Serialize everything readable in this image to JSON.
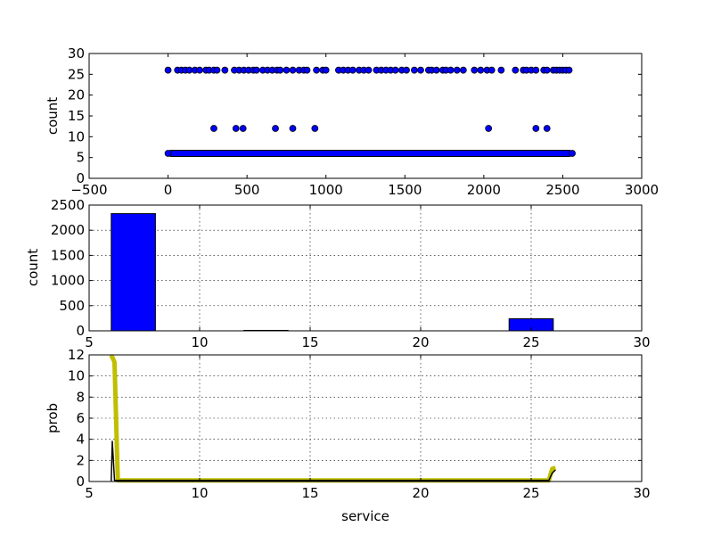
{
  "chart_data": [
    {
      "type": "scatter",
      "title": "",
      "xlabel": "",
      "ylabel": "count",
      "xlim": [
        -500,
        3000
      ],
      "ylim": [
        0,
        30
      ],
      "xticks": [
        -500,
        0,
        500,
        1000,
        1500,
        2000,
        2500,
        3000
      ],
      "yticks": [
        0,
        5,
        10,
        15,
        20,
        25,
        30
      ],
      "grid": false,
      "marker_color": "#0000ff",
      "series": [
        {
          "name": "",
          "points": [
            [
              0,
              6
            ],
            [
              2560,
              6
            ],
            [
              290,
              12
            ],
            [
              430,
              12
            ],
            [
              475,
              12
            ],
            [
              680,
              12
            ],
            [
              790,
              12
            ],
            [
              930,
              12
            ],
            [
              2030,
              12
            ],
            [
              2330,
              12
            ],
            [
              2400,
              12
            ],
            [
              0,
              26
            ],
            [
              60,
              26
            ],
            [
              85,
              26
            ],
            [
              110,
              26
            ],
            [
              135,
              26
            ],
            [
              170,
              26
            ],
            [
              200,
              26
            ],
            [
              240,
              26
            ],
            [
              260,
              26
            ],
            [
              290,
              26
            ],
            [
              310,
              26
            ],
            [
              360,
              26
            ],
            [
              420,
              26
            ],
            [
              450,
              26
            ],
            [
              480,
              26
            ],
            [
              510,
              26
            ],
            [
              540,
              26
            ],
            [
              560,
              26
            ],
            [
              600,
              26
            ],
            [
              630,
              26
            ],
            [
              660,
              26
            ],
            [
              690,
              26
            ],
            [
              710,
              26
            ],
            [
              750,
              26
            ],
            [
              790,
              26
            ],
            [
              830,
              26
            ],
            [
              860,
              26
            ],
            [
              880,
              26
            ],
            [
              940,
              26
            ],
            [
              980,
              26
            ],
            [
              1000,
              26
            ],
            [
              1080,
              26
            ],
            [
              1110,
              26
            ],
            [
              1140,
              26
            ],
            [
              1170,
              26
            ],
            [
              1210,
              26
            ],
            [
              1240,
              26
            ],
            [
              1270,
              26
            ],
            [
              1320,
              26
            ],
            [
              1350,
              26
            ],
            [
              1380,
              26
            ],
            [
              1410,
              26
            ],
            [
              1440,
              26
            ],
            [
              1480,
              26
            ],
            [
              1510,
              26
            ],
            [
              1560,
              26
            ],
            [
              1600,
              26
            ],
            [
              1650,
              26
            ],
            [
              1670,
              26
            ],
            [
              1700,
              26
            ],
            [
              1740,
              26
            ],
            [
              1760,
              26
            ],
            [
              1790,
              26
            ],
            [
              1830,
              26
            ],
            [
              1870,
              26
            ],
            [
              1940,
              26
            ],
            [
              1980,
              26
            ],
            [
              2020,
              26
            ],
            [
              2050,
              26
            ],
            [
              2110,
              26
            ],
            [
              2200,
              26
            ],
            [
              2250,
              26
            ],
            [
              2270,
              26
            ],
            [
              2300,
              26
            ],
            [
              2330,
              26
            ],
            [
              2380,
              26
            ],
            [
              2400,
              26
            ],
            [
              2440,
              26
            ],
            [
              2460,
              26
            ],
            [
              2480,
              26
            ],
            [
              2500,
              26
            ],
            [
              2520,
              26
            ],
            [
              2540,
              26
            ]
          ],
          "dense_band": {
            "y": 6,
            "x_from": 0,
            "x_to": 2560
          }
        }
      ]
    },
    {
      "type": "bar",
      "title": "",
      "xlabel": "",
      "ylabel": "count",
      "xlim": [
        5,
        30
      ],
      "ylim": [
        0,
        2500
      ],
      "xticks": [
        5,
        10,
        15,
        20,
        25,
        30
      ],
      "yticks": [
        0,
        500,
        1000,
        1500,
        2000,
        2500
      ],
      "grid": true,
      "bar_color": "#0000ff",
      "bins": [
        {
          "x0": 6,
          "x1": 8,
          "value": 2330
        },
        {
          "x0": 12,
          "x1": 14,
          "value": 9
        },
        {
          "x0": 24,
          "x1": 26,
          "value": 240
        }
      ]
    },
    {
      "type": "line",
      "title": "",
      "xlabel": "service",
      "ylabel": "prob",
      "xlim": [
        5,
        30
      ],
      "ylim": [
        0,
        12
      ],
      "xticks": [
        5,
        10,
        15,
        20,
        25,
        30
      ],
      "yticks": [
        0,
        2,
        4,
        6,
        8,
        10,
        12
      ],
      "grid": true,
      "series": [
        {
          "name": "",
          "color": "#bfbf00",
          "points": [
            [
              5.95,
              11.7
            ],
            [
              6.05,
              11.8
            ],
            [
              6.15,
              11.3
            ],
            [
              6.3,
              0.1
            ],
            [
              12,
              0.1
            ],
            [
              25.8,
              0.1
            ],
            [
              25.95,
              1.2
            ],
            [
              26.1,
              1.3
            ]
          ]
        },
        {
          "name": "",
          "color": "#000000",
          "points": [
            [
              6.0,
              0.05
            ],
            [
              6.05,
              3.8
            ],
            [
              6.15,
              0.1
            ],
            [
              6.3,
              0.1
            ],
            [
              25.8,
              0.1
            ],
            [
              25.95,
              0.8
            ],
            [
              26.1,
              1.1
            ]
          ]
        }
      ]
    }
  ]
}
